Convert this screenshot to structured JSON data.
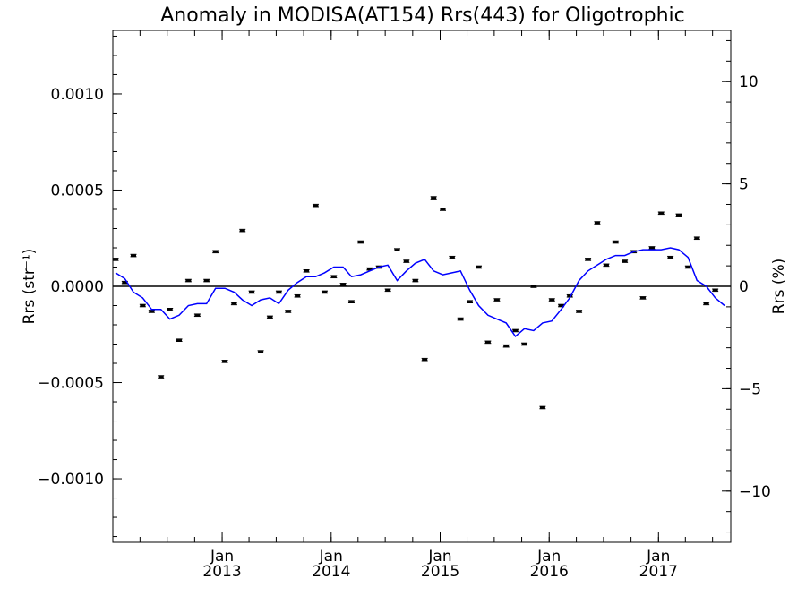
{
  "chart_data": {
    "type": "scatter",
    "title": "Anomaly in MODISA(AT154) Rrs(443) for Oligotrophic",
    "ylabel_left": "Rrs (str⁻¹)",
    "ylabel_right": "Rrs (%)",
    "xlim": [
      "2012-01-01",
      "2017-08-31"
    ],
    "ylim_left": [
      -0.00133,
      0.00133
    ],
    "ylim_right": [
      -12.5,
      12.5
    ],
    "x_ticks": [
      {
        "month": "Jan",
        "year": "2013",
        "date": "2013-01-01"
      },
      {
        "month": "Jan",
        "year": "2014",
        "date": "2014-01-01"
      },
      {
        "month": "Jan",
        "year": "2015",
        "date": "2015-01-01"
      },
      {
        "month": "Jan",
        "year": "2016",
        "date": "2016-01-01"
      },
      {
        "month": "Jan",
        "year": "2017",
        "date": "2017-01-01"
      }
    ],
    "y_ticks_left": [
      {
        "value": 0.001,
        "label": "0.0010"
      },
      {
        "value": 0.0005,
        "label": "0.0005"
      },
      {
        "value": 0.0,
        "label": "0.0000"
      },
      {
        "value": -0.0005,
        "label": "−0.0005"
      },
      {
        "value": -0.001,
        "label": "−0.0010"
      }
    ],
    "y_ticks_right": [
      {
        "value": 10,
        "label": "10"
      },
      {
        "value": 5,
        "label": "5"
      },
      {
        "value": 0,
        "label": "0"
      },
      {
        "value": -5,
        "label": "−5"
      },
      {
        "value": -10,
        "label": "−10"
      }
    ],
    "zero_line": true,
    "grid": false,
    "colors": {
      "monthly_points": "#000000",
      "smoothed_line": "#0000ff",
      "zero_line": "#000000"
    },
    "series": [
      {
        "kind": "monthly_anomaly_points",
        "points": [
          [
            "2012-01-01",
            0.00014
          ],
          [
            "2012-02-01",
            2e-05
          ],
          [
            "2012-03-01",
            0.00016
          ],
          [
            "2012-04-01",
            -0.0001
          ],
          [
            "2012-05-01",
            -0.00013
          ],
          [
            "2012-06-01",
            -0.00047
          ],
          [
            "2012-07-01",
            -0.00012
          ],
          [
            "2012-08-01",
            -0.00028
          ],
          [
            "2012-09-01",
            3e-05
          ],
          [
            "2012-10-01",
            -0.00015
          ],
          [
            "2012-11-01",
            3e-05
          ],
          [
            "2012-12-01",
            0.00018
          ],
          [
            "2013-01-01",
            -0.00039
          ],
          [
            "2013-02-01",
            -9e-05
          ],
          [
            "2013-03-01",
            0.00029
          ],
          [
            "2013-04-01",
            -3e-05
          ],
          [
            "2013-05-01",
            -0.00034
          ],
          [
            "2013-06-01",
            -0.00016
          ],
          [
            "2013-07-01",
            -3e-05
          ],
          [
            "2013-08-01",
            -0.00013
          ],
          [
            "2013-09-01",
            -5e-05
          ],
          [
            "2013-10-01",
            8e-05
          ],
          [
            "2013-11-01",
            0.00042
          ],
          [
            "2013-12-01",
            -3e-05
          ],
          [
            "2014-01-01",
            5e-05
          ],
          [
            "2014-02-01",
            1e-05
          ],
          [
            "2014-03-01",
            -8e-05
          ],
          [
            "2014-04-01",
            0.00023
          ],
          [
            "2014-05-01",
            9e-05
          ],
          [
            "2014-06-01",
            0.0001
          ],
          [
            "2014-07-01",
            -2e-05
          ],
          [
            "2014-08-01",
            0.00019
          ],
          [
            "2014-09-01",
            0.00013
          ],
          [
            "2014-10-01",
            3e-05
          ],
          [
            "2014-11-01",
            -0.00038
          ],
          [
            "2014-12-01",
            0.00046
          ],
          [
            "2015-01-01",
            0.0004
          ],
          [
            "2015-02-01",
            0.00015
          ],
          [
            "2015-03-01",
            -0.00017
          ],
          [
            "2015-04-01",
            -8e-05
          ],
          [
            "2015-05-01",
            0.0001
          ],
          [
            "2015-06-01",
            -0.00029
          ],
          [
            "2015-07-01",
            -7e-05
          ],
          [
            "2015-08-01",
            -0.00031
          ],
          [
            "2015-09-01",
            -0.00023
          ],
          [
            "2015-10-01",
            -0.0003
          ],
          [
            "2015-11-01",
            0.0
          ],
          [
            "2015-12-01",
            -0.00063
          ],
          [
            "2016-01-01",
            -7e-05
          ],
          [
            "2016-02-01",
            -0.0001
          ],
          [
            "2016-03-01",
            -5e-05
          ],
          [
            "2016-04-01",
            -0.00013
          ],
          [
            "2016-05-01",
            0.00014
          ],
          [
            "2016-06-01",
            0.00033
          ],
          [
            "2016-07-01",
            0.00011
          ],
          [
            "2016-08-01",
            0.00023
          ],
          [
            "2016-09-01",
            0.00013
          ],
          [
            "2016-10-01",
            0.00018
          ],
          [
            "2016-11-01",
            -6e-05
          ],
          [
            "2016-12-01",
            0.0002
          ],
          [
            "2017-01-01",
            0.00038
          ],
          [
            "2017-02-01",
            0.00015
          ],
          [
            "2017-03-01",
            0.00037
          ],
          [
            "2017-04-01",
            0.0001
          ],
          [
            "2017-05-01",
            0.00025
          ],
          [
            "2017-06-01",
            -9e-05
          ],
          [
            "2017-07-01",
            -2e-05
          ]
        ]
      },
      {
        "kind": "smoothed_anomaly_line",
        "points": [
          [
            "2012-01-01",
            7e-05
          ],
          [
            "2012-02-01",
            4e-05
          ],
          [
            "2012-03-01",
            -3e-05
          ],
          [
            "2012-04-01",
            -6e-05
          ],
          [
            "2012-05-01",
            -0.00012
          ],
          [
            "2012-06-01",
            -0.00012
          ],
          [
            "2012-07-01",
            -0.00017
          ],
          [
            "2012-08-01",
            -0.00015
          ],
          [
            "2012-09-01",
            -0.0001
          ],
          [
            "2012-10-01",
            -9e-05
          ],
          [
            "2012-11-01",
            -9e-05
          ],
          [
            "2012-12-01",
            -1e-05
          ],
          [
            "2013-01-01",
            -1e-05
          ],
          [
            "2013-02-01",
            -3e-05
          ],
          [
            "2013-03-01",
            -7e-05
          ],
          [
            "2013-04-01",
            -0.0001
          ],
          [
            "2013-05-01",
            -7e-05
          ],
          [
            "2013-06-01",
            -6e-05
          ],
          [
            "2013-07-01",
            -9e-05
          ],
          [
            "2013-08-01",
            -2e-05
          ],
          [
            "2013-09-01",
            2e-05
          ],
          [
            "2013-10-01",
            5e-05
          ],
          [
            "2013-11-01",
            5e-05
          ],
          [
            "2013-12-01",
            7e-05
          ],
          [
            "2014-01-01",
            0.0001
          ],
          [
            "2014-02-01",
            0.0001
          ],
          [
            "2014-03-01",
            5e-05
          ],
          [
            "2014-04-01",
            6e-05
          ],
          [
            "2014-05-01",
            8e-05
          ],
          [
            "2014-06-01",
            0.0001
          ],
          [
            "2014-07-01",
            0.00011
          ],
          [
            "2014-08-01",
            3e-05
          ],
          [
            "2014-09-01",
            8e-05
          ],
          [
            "2014-10-01",
            0.00012
          ],
          [
            "2014-11-01",
            0.00014
          ],
          [
            "2014-12-01",
            8e-05
          ],
          [
            "2015-01-01",
            6e-05
          ],
          [
            "2015-02-01",
            7e-05
          ],
          [
            "2015-03-01",
            8e-05
          ],
          [
            "2015-04-01",
            -2e-05
          ],
          [
            "2015-05-01",
            -0.0001
          ],
          [
            "2015-06-01",
            -0.00015
          ],
          [
            "2015-07-01",
            -0.00017
          ],
          [
            "2015-08-01",
            -0.00019
          ],
          [
            "2015-09-01",
            -0.00026
          ],
          [
            "2015-10-01",
            -0.00022
          ],
          [
            "2015-11-01",
            -0.00023
          ],
          [
            "2015-12-01",
            -0.00019
          ],
          [
            "2016-01-01",
            -0.00018
          ],
          [
            "2016-02-01",
            -0.00012
          ],
          [
            "2016-03-01",
            -6e-05
          ],
          [
            "2016-04-01",
            3e-05
          ],
          [
            "2016-05-01",
            8e-05
          ],
          [
            "2016-06-01",
            0.00011
          ],
          [
            "2016-07-01",
            0.00014
          ],
          [
            "2016-08-01",
            0.00016
          ],
          [
            "2016-09-01",
            0.00016
          ],
          [
            "2016-10-01",
            0.00018
          ],
          [
            "2016-11-01",
            0.00019
          ],
          [
            "2016-12-01",
            0.00019
          ],
          [
            "2017-01-01",
            0.00019
          ],
          [
            "2017-02-01",
            0.0002
          ],
          [
            "2017-03-01",
            0.00019
          ],
          [
            "2017-04-01",
            0.00015
          ],
          [
            "2017-05-01",
            3e-05
          ],
          [
            "2017-06-01",
            0.0
          ],
          [
            "2017-07-01",
            -6e-05
          ],
          [
            "2017-08-01",
            -0.0001
          ]
        ]
      }
    ]
  }
}
